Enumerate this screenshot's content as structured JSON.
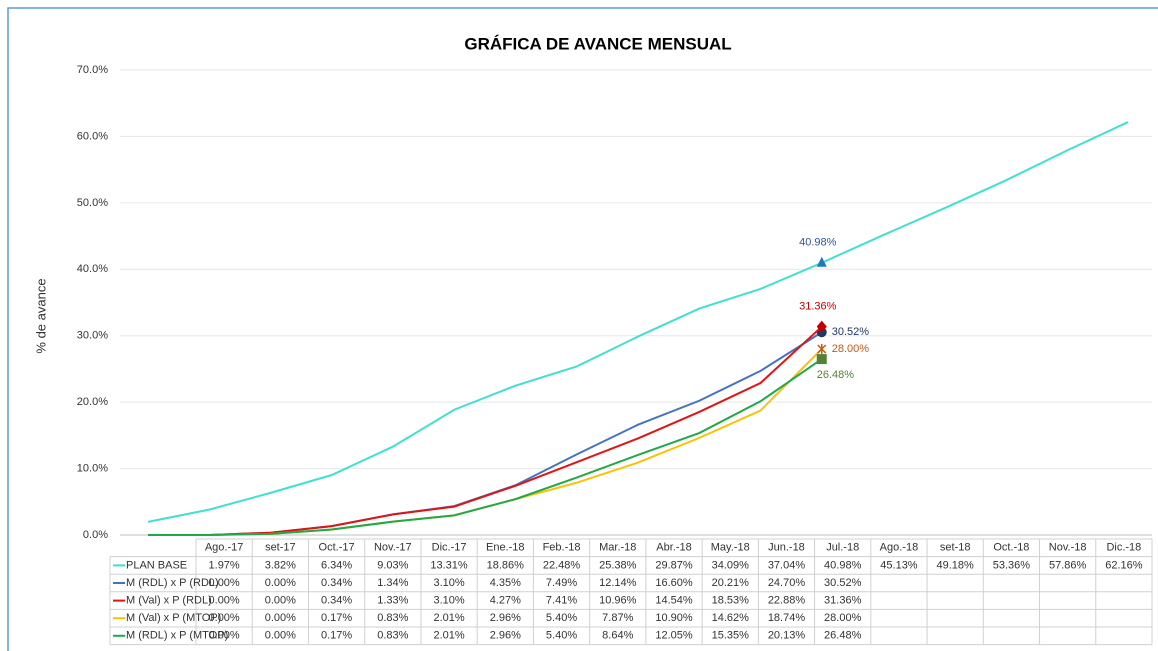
{
  "chart_data": {
    "type": "line",
    "title": "GRÁFICA DE AVANCE MENSUAL",
    "y_label": "% de avance",
    "ylim": [
      0,
      70
    ],
    "yticks": [
      {
        "value": 0,
        "label": "0.0%"
      },
      {
        "value": 10,
        "label": "10.0%"
      },
      {
        "value": 20,
        "label": "20.0%"
      },
      {
        "value": 30,
        "label": "30.0%"
      },
      {
        "value": 40,
        "label": "40.0%"
      },
      {
        "value": 50,
        "label": "50.0%"
      },
      {
        "value": 60,
        "label": "60.0%"
      },
      {
        "value": 70,
        "label": "70.0%"
      }
    ],
    "grid": true,
    "data_table": true,
    "categories": [
      "Ago.-17",
      "set-17",
      "Oct.-17",
      "Nov.-17",
      "Dic.-17",
      "Ene.-18",
      "Feb.-18",
      "Mar.-18",
      "Abr.-18",
      "May.-18",
      "Jun.-18",
      "Jul.-18",
      "Ago.-18",
      "set-18",
      "Oct.-18",
      "Nov.-18",
      "Dic.-18"
    ],
    "series": [
      {
        "name": "PLAN BASE",
        "color": "#40e0d0",
        "marker": "triangle",
        "marker_color": "#1f7ac4",
        "label_color": "#2f5597",
        "label_position": "above",
        "labeled_index": 11,
        "values": [
          1.97,
          3.82,
          6.34,
          9.03,
          13.31,
          18.86,
          22.48,
          25.38,
          29.87,
          34.09,
          37.04,
          40.98,
          45.13,
          49.18,
          53.36,
          57.86,
          62.16
        ],
        "value_labels": [
          "1.97%",
          "3.82%",
          "6.34%",
          "9.03%",
          "13.31%",
          "18.86%",
          "22.48%",
          "25.38%",
          "29.87%",
          "34.09%",
          "37.04%",
          "40.98%",
          "45.13%",
          "49.18%",
          "53.36%",
          "57.86%",
          "62.16%"
        ]
      },
      {
        "name": "M (RDL) x P (RDL)",
        "color": "#4472c4",
        "marker": "circle",
        "marker_color": "#203864",
        "label_color": "#203864",
        "label_position": "right",
        "labeled_index": 11,
        "values": [
          0,
          0,
          0.34,
          1.34,
          3.1,
          4.35,
          7.49,
          12.14,
          16.6,
          20.21,
          24.7,
          30.52,
          null,
          null,
          null,
          null,
          null
        ],
        "value_labels": [
          "0.00%",
          "0.00%",
          "0.34%",
          "1.34%",
          "3.10%",
          "4.35%",
          "7.49%",
          "12.14%",
          "16.60%",
          "20.21%",
          "24.70%",
          "30.52%",
          null,
          null,
          null,
          null,
          null
        ]
      },
      {
        "name": "M (Val) x P (RDL)",
        "color": "#e01414",
        "marker": "diamond",
        "marker_color": "#c00000",
        "label_color": "#c00000",
        "label_position": "above",
        "labeled_index": 11,
        "values": [
          0,
          0,
          0.34,
          1.33,
          3.1,
          4.27,
          7.41,
          10.96,
          14.54,
          18.53,
          22.88,
          31.36,
          null,
          null,
          null,
          null,
          null
        ],
        "value_labels": [
          "0.00%",
          "0.00%",
          "0.34%",
          "1.33%",
          "3.10%",
          "4.27%",
          "7.41%",
          "10.96%",
          "14.54%",
          "18.53%",
          "22.88%",
          "31.36%",
          null,
          null,
          null,
          null,
          null
        ]
      },
      {
        "name": "M (Val) x P (MTOP)",
        "color": "#ffc000",
        "marker": "star",
        "marker_color": "#c55a11",
        "label_color": "#c55a11",
        "label_position": "right",
        "labeled_index": 11,
        "values": [
          0,
          0,
          0.17,
          0.83,
          2.01,
          2.96,
          5.4,
          7.87,
          10.9,
          14.62,
          18.74,
          28.0,
          null,
          null,
          null,
          null,
          null
        ],
        "value_labels": [
          "0.00%",
          "0.00%",
          "0.17%",
          "0.83%",
          "2.01%",
          "2.96%",
          "5.40%",
          "7.87%",
          "10.90%",
          "14.62%",
          "18.74%",
          "28.00%",
          null,
          null,
          null,
          null,
          null
        ]
      },
      {
        "name": "M (RDL) x P (MTOP)",
        "color": "#22a84a",
        "marker": "square",
        "marker_color": "#548235",
        "label_color": "#548235",
        "label_position": "below",
        "labeled_index": 11,
        "values": [
          0,
          0,
          0.17,
          0.83,
          2.01,
          2.96,
          5.4,
          8.64,
          12.05,
          15.35,
          20.13,
          26.48,
          null,
          null,
          null,
          null,
          null
        ],
        "value_labels": [
          "0.00%",
          "0.00%",
          "0.17%",
          "0.83%",
          "2.01%",
          "2.96%",
          "5.40%",
          "8.64%",
          "12.05%",
          "15.35%",
          "20.13%",
          "26.48%",
          null,
          null,
          null,
          null,
          null
        ]
      }
    ]
  }
}
